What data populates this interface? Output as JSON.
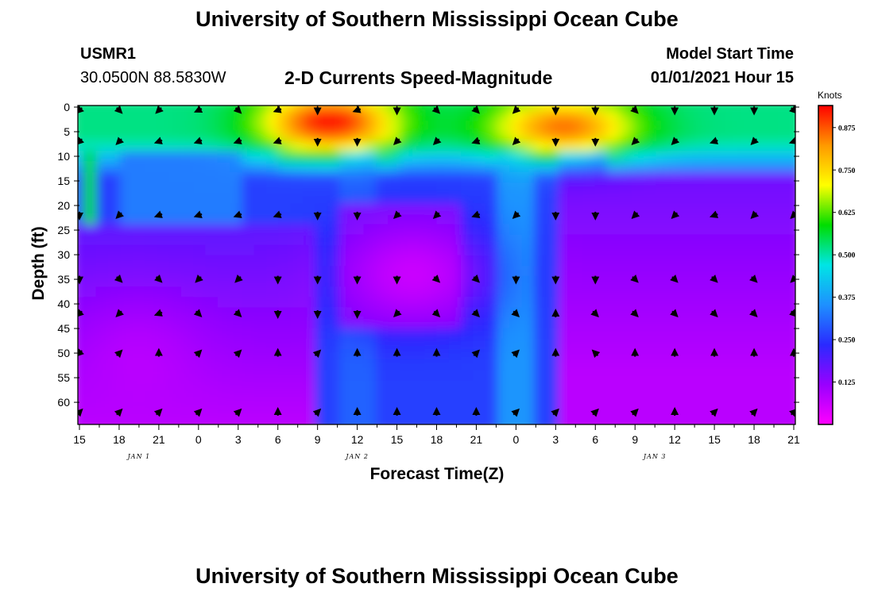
{
  "title_top": "University of Southern Mississippi Ocean Cube",
  "title_bottom": "University of Southern Mississippi Ocean Cube",
  "station": "USMR1",
  "coords": "30.0500N 88.5830W",
  "center_title": "2-D Currents Speed-Magnitude",
  "model_start_label": "Model Start Time",
  "model_start_value": "01/01/2021 Hour 15",
  "chart_data": {
    "type": "heatmap",
    "title": "2-D Currents Speed-Magnitude",
    "xlabel": "Forecast Time(Z)",
    "ylabel": "Depth (ft)",
    "x_ticks": [
      "15",
      "18",
      "21",
      "0",
      "3",
      "6",
      "9",
      "12",
      "15",
      "18",
      "21",
      "0",
      "3",
      "6",
      "9",
      "12",
      "15",
      "18",
      "21"
    ],
    "date_labels": [
      {
        "label": "JAN 1",
        "tick_index": 1.5
      },
      {
        "label": "JAN 2",
        "tick_index": 7
      },
      {
        "label": "JAN 3",
        "tick_index": 14.5
      }
    ],
    "y_ticks": [
      0,
      5,
      10,
      15,
      20,
      25,
      30,
      35,
      40,
      45,
      50,
      55,
      60
    ],
    "ylim": [
      0,
      64.5
    ],
    "colorbar": {
      "units": "Knots",
      "range": [
        0,
        0.94
      ],
      "ticks": [
        "0.125",
        "0.250",
        "0.375",
        "0.500",
        "0.625",
        "0.750",
        "0.875"
      ],
      "tick_values": [
        0.125,
        0.25,
        0.375,
        0.5,
        0.625,
        0.75,
        0.875
      ],
      "colors": [
        "#ff00ff",
        "#9900ff",
        "#2a2aff",
        "#1e90ff",
        "#00e5e5",
        "#00dd00",
        "#ffff00",
        "#ff9900",
        "#ff0000"
      ]
    },
    "speed_hotspots": [
      {
        "t": 6.3,
        "depth": 3,
        "speed": 0.94,
        "rx": 1.7,
        "rz": 6
      },
      {
        "t": 12.2,
        "depth": 4,
        "speed": 0.86,
        "rx": 1.8,
        "rz": 6
      },
      {
        "t": 8.4,
        "depth": 34,
        "speed": 0.06,
        "rx": 1.8,
        "rz": 10
      },
      {
        "t": 1.5,
        "depth": 53,
        "speed": 0.08,
        "rx": 1.6,
        "rz": 13
      }
    ],
    "vectors": [
      [
        225,
        315,
        225,
        205,
        315,
        200,
        270,
        200,
        270,
        315,
        315,
        225,
        270,
        270,
        315,
        270,
        270,
        270,
        315
      ],
      [
        225,
        225,
        200,
        200,
        200,
        200,
        270,
        270,
        225,
        225,
        200,
        225,
        270,
        270,
        225,
        225,
        200,
        225,
        200
      ],
      [
        270,
        225,
        200,
        200,
        200,
        200,
        270,
        270,
        225,
        225,
        200,
        225,
        270,
        270,
        225,
        225,
        200,
        225,
        225
      ],
      [
        270,
        315,
        315,
        225,
        225,
        270,
        270,
        270,
        270,
        315,
        315,
        270,
        270,
        270,
        315,
        315,
        315,
        315,
        225
      ],
      [
        225,
        225,
        200,
        315,
        315,
        270,
        270,
        270,
        225,
        315,
        315,
        315,
        90,
        315,
        315,
        315,
        315,
        315,
        315
      ],
      [
        225,
        45,
        90,
        45,
        45,
        90,
        45,
        90,
        90,
        90,
        45,
        45,
        90,
        135,
        90,
        90,
        90,
        90,
        90
      ],
      [
        45,
        45,
        45,
        45,
        45,
        90,
        45,
        90,
        90,
        90,
        90,
        45,
        45,
        45,
        45,
        90,
        45,
        45,
        45
      ]
    ]
  }
}
